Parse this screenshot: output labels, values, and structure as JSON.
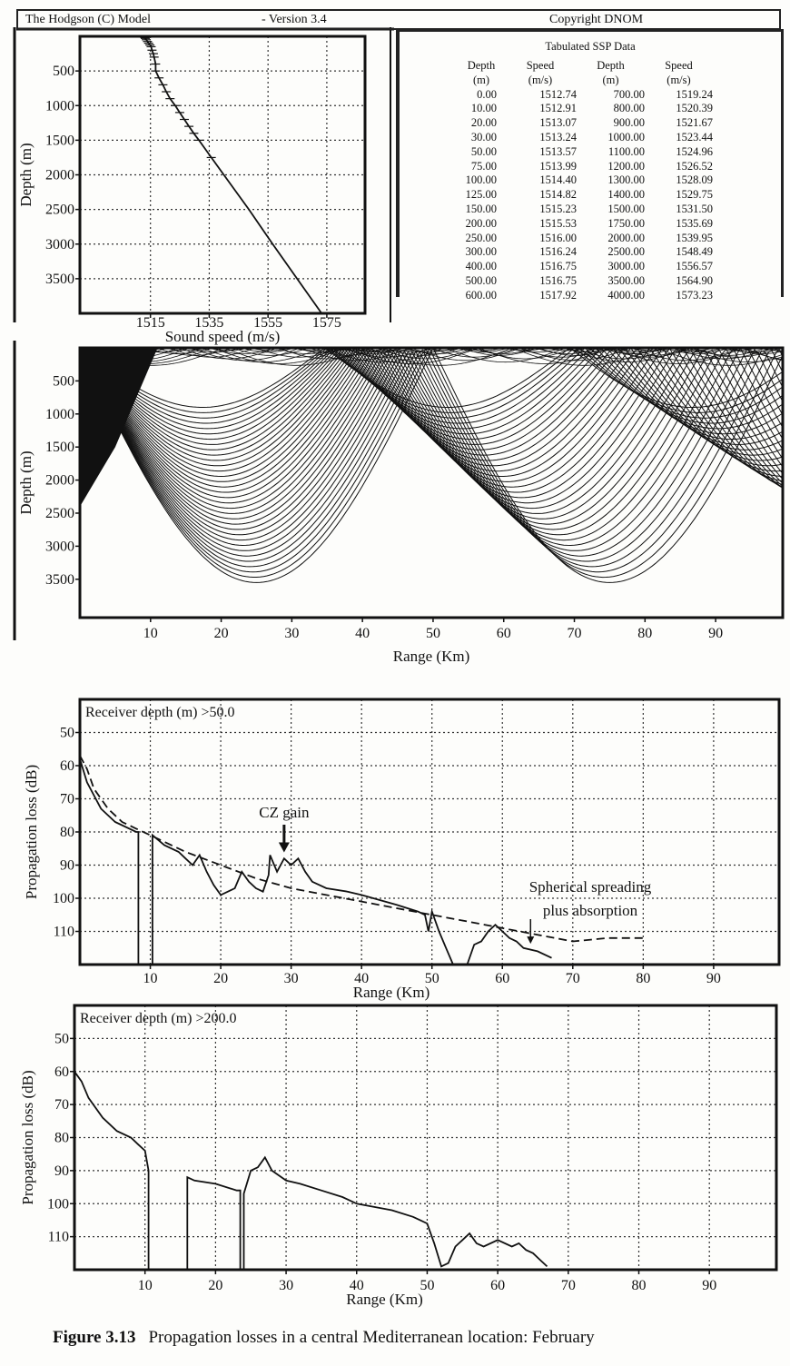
{
  "header": {
    "title": "The Hodgson (C) Model",
    "version": "- Version 3.4",
    "copyright": "Copyright DNOM"
  },
  "ssp_table": {
    "title": "Tabulated SSP Data",
    "headers": [
      "Depth",
      "Speed",
      "Depth",
      "Speed"
    ],
    "units": [
      "(m)",
      "(m/s)",
      "(m)",
      "(m/s)"
    ],
    "rows": [
      [
        "0.00",
        "1512.74",
        "700.00",
        "1519.24"
      ],
      [
        "10.00",
        "1512.91",
        "800.00",
        "1520.39"
      ],
      [
        "20.00",
        "1513.07",
        "900.00",
        "1521.67"
      ],
      [
        "30.00",
        "1513.24",
        "1000.00",
        "1523.44"
      ],
      [
        "50.00",
        "1513.57",
        "1100.00",
        "1524.96"
      ],
      [
        "75.00",
        "1513.99",
        "1200.00",
        "1526.52"
      ],
      [
        "100.00",
        "1514.40",
        "1300.00",
        "1528.09"
      ],
      [
        "125.00",
        "1514.82",
        "1400.00",
        "1529.75"
      ],
      [
        "150.00",
        "1515.23",
        "1500.00",
        "1531.50"
      ],
      [
        "200.00",
        "1515.53",
        "1750.00",
        "1535.69"
      ],
      [
        "250.00",
        "1516.00",
        "2000.00",
        "1539.95"
      ],
      [
        "300.00",
        "1516.24",
        "2500.00",
        "1548.49"
      ],
      [
        "400.00",
        "1516.75",
        "3000.00",
        "1556.57"
      ],
      [
        "500.00",
        "1516.75",
        "3500.00",
        "1564.90"
      ],
      [
        "600.00",
        "1517.92",
        "4000.00",
        "1573.23"
      ]
    ]
  },
  "chart_data": [
    {
      "type": "line",
      "id": "ssp",
      "xlabel": "Sound speed (m/s)",
      "ylabel": "Depth (m)",
      "xlim": [
        1491,
        1588
      ],
      "ylim": [
        0,
        4000
      ],
      "y_inverted": true,
      "grid": true,
      "xticks": [
        1515,
        1535,
        1555,
        1575
      ],
      "yticks": [
        500,
        1000,
        1500,
        2000,
        2500,
        3000,
        3500
      ],
      "x": [
        1512.74,
        1512.91,
        1513.07,
        1513.24,
        1513.57,
        1513.99,
        1514.4,
        1514.82,
        1515.23,
        1515.53,
        1516.0,
        1516.24,
        1516.75,
        1516.75,
        1517.92,
        1519.24,
        1520.39,
        1521.67,
        1523.44,
        1524.96,
        1526.52,
        1528.09,
        1529.75,
        1531.5,
        1535.69,
        1539.95,
        1548.49,
        1556.57,
        1564.9,
        1573.23
      ],
      "y": [
        0,
        10,
        20,
        30,
        50,
        75,
        100,
        125,
        150,
        200,
        250,
        300,
        400,
        500,
        600,
        700,
        800,
        900,
        1000,
        1100,
        1200,
        1300,
        1400,
        1500,
        1750,
        2000,
        2500,
        3000,
        3500,
        4000
      ]
    },
    {
      "type": "line",
      "id": "raytrace",
      "xlabel": "Range (Km)",
      "ylabel": "Depth (m)",
      "xlim": [
        0,
        99.5
      ],
      "ylim": [
        0,
        4080
      ],
      "y_inverted": true,
      "grid": false,
      "xticks": [
        10,
        20,
        30,
        40,
        50,
        60,
        70,
        80,
        90
      ],
      "yticks": [
        500,
        1000,
        1500,
        2000,
        2500,
        3000,
        3500
      ],
      "convergence_zone_turning_depth_max": 3550,
      "convergence_zone_turning_range": 25
    },
    {
      "type": "line",
      "id": "tl50",
      "title": "Receiver depth (m) >50.0",
      "xlabel": "Range (Km)",
      "ylabel": "Propagation loss (dB)",
      "xlim": [
        0,
        99.3
      ],
      "ylim": [
        40,
        120
      ],
      "y_inverted": true,
      "grid": true,
      "xticks": [
        10,
        20,
        30,
        40,
        50,
        60,
        70,
        80,
        90
      ],
      "yticks": [
        50,
        60,
        70,
        80,
        90,
        100,
        110
      ],
      "series": [
        {
          "style": "solid",
          "x": [
            0,
            1,
            3,
            5,
            8,
            8.3,
            8.3,
            null,
            10.3,
            10.3,
            12,
            14,
            15,
            16,
            17,
            18,
            19,
            20,
            22,
            23,
            24,
            25,
            26,
            26.8,
            27,
            28,
            29,
            30,
            31,
            32,
            33,
            35,
            38,
            40,
            45,
            48,
            49,
            49.5,
            50,
            50.5,
            51,
            52,
            53,
            null,
            55,
            56,
            57,
            58,
            59,
            60,
            61,
            62,
            63,
            65,
            67
          ],
          "y": [
            58,
            65,
            73,
            77,
            80,
            80,
            120,
            null,
            120,
            81,
            84,
            86,
            88,
            90,
            87,
            92,
            96,
            99,
            97,
            92,
            95,
            97,
            98,
            93,
            87,
            92,
            88,
            90,
            88,
            92,
            95,
            97,
            98,
            99,
            102,
            104,
            105,
            110,
            104,
            107,
            110,
            115,
            120,
            null,
            120,
            114,
            113,
            110,
            108,
            110,
            112,
            113,
            115,
            116,
            118
          ]
        },
        {
          "style": "dashed",
          "x": [
            0,
            1,
            2,
            4,
            6,
            8,
            10,
            15,
            20,
            25,
            30,
            35,
            40,
            45,
            50,
            55,
            60,
            65,
            70,
            75,
            80
          ],
          "y": [
            57,
            61,
            67,
            73,
            77,
            79,
            81,
            86,
            90,
            94,
            97,
            99,
            101,
            103,
            105,
            107,
            109,
            111,
            113,
            112,
            112
          ]
        }
      ],
      "annotations": [
        {
          "text": "CZ gain",
          "x": 29,
          "y": 87
        },
        {
          "text": "Spherical spreading",
          "text2": "plus absorption",
          "x": 64,
          "y": 114
        }
      ]
    },
    {
      "type": "line",
      "id": "tl200",
      "title": "Receiver depth (m) >200.0",
      "xlabel": "Range (Km)",
      "ylabel": "Propagation loss (dB)",
      "xlim": [
        0,
        99.5
      ],
      "ylim": [
        40,
        120
      ],
      "y_inverted": true,
      "grid": true,
      "xticks": [
        10,
        20,
        30,
        40,
        50,
        60,
        70,
        80,
        90
      ],
      "yticks": [
        50,
        60,
        70,
        80,
        90,
        100,
        110
      ],
      "series": [
        {
          "style": "solid",
          "x": [
            0,
            1,
            2,
            4,
            6,
            8,
            9,
            10,
            10.5,
            10.5,
            null,
            16,
            16,
            17,
            20,
            23,
            23.5,
            23.5,
            null,
            24,
            24,
            25,
            26,
            27,
            28,
            30,
            32,
            35,
            38,
            40,
            45,
            48,
            49,
            50,
            51,
            52,
            53,
            54,
            55,
            56,
            57,
            58,
            60,
            62,
            63,
            64,
            65,
            66,
            67
          ],
          "y": [
            60,
            63,
            68,
            74,
            78,
            80,
            82,
            84,
            90,
            120,
            null,
            120,
            92,
            93,
            94,
            96,
            96,
            120,
            null,
            120,
            97,
            90,
            89,
            86,
            90,
            93,
            94,
            96,
            98,
            100,
            102,
            104,
            105,
            106,
            112,
            119,
            118,
            113,
            111,
            109,
            112,
            113,
            111,
            113,
            112,
            114,
            115,
            117,
            119
          ]
        }
      ]
    }
  ],
  "caption": {
    "label": "Figure 3.13",
    "text": "Propagation losses in a central Mediterranean location: February"
  }
}
